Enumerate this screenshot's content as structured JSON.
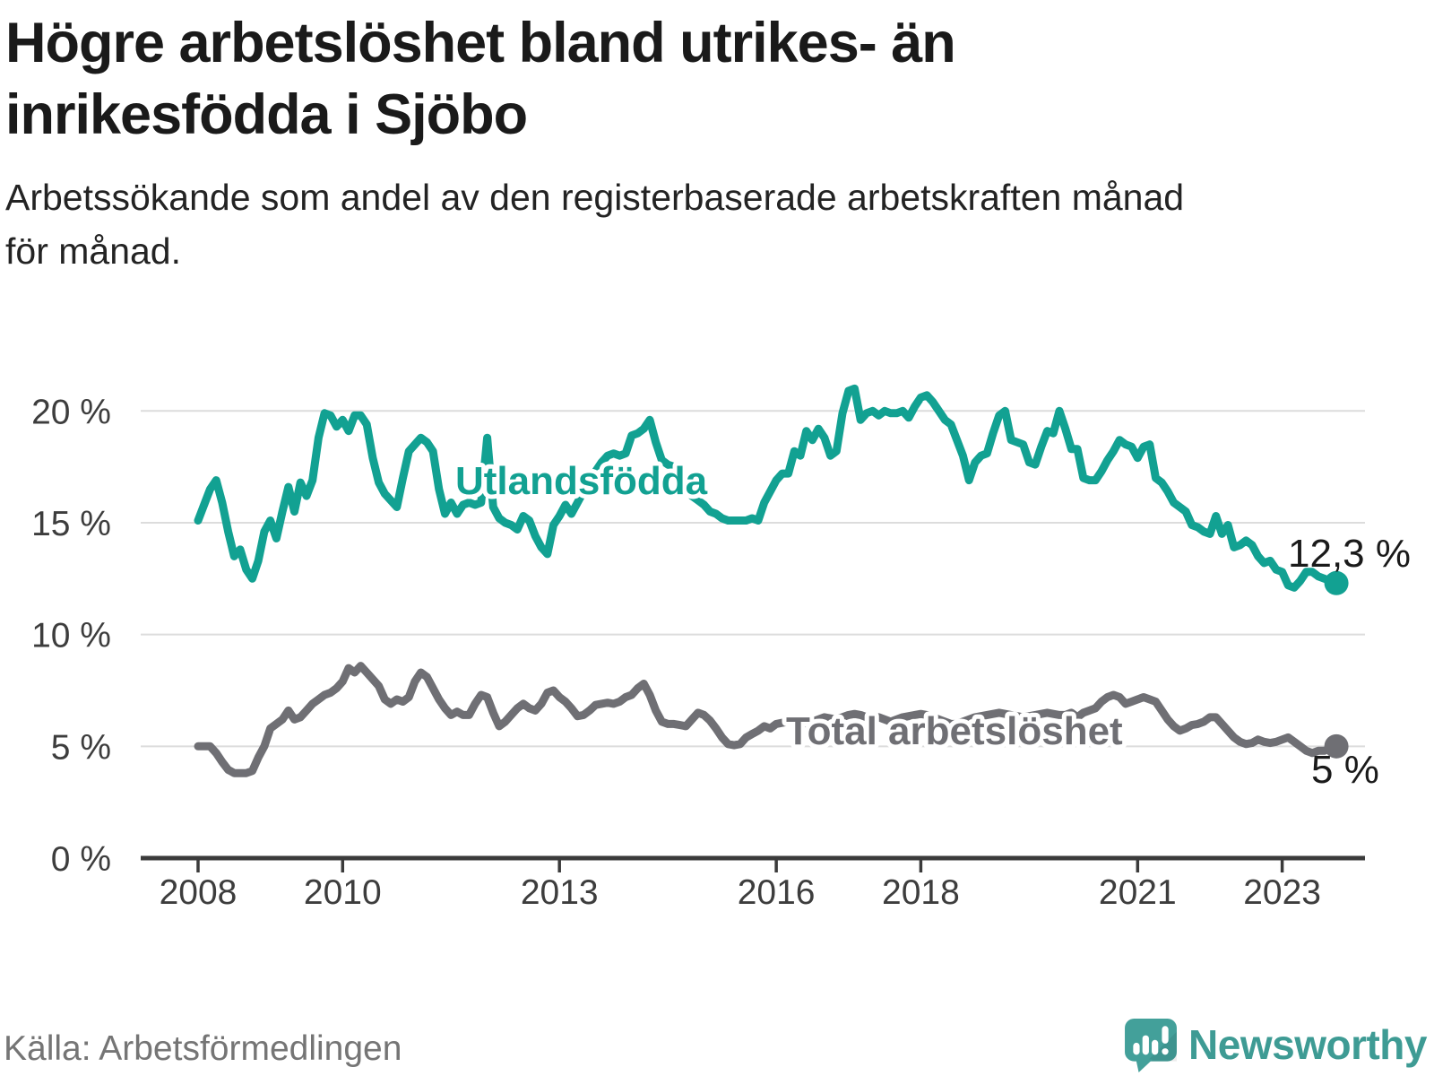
{
  "title": "Högre arbetslöshet bland utrikes- än inrikesfödda i Sjöbo",
  "title_lines": [
    "Högre arbetslöshet bland utrikes- än",
    "inrikesfödda i Sjöbo"
  ],
  "subtitle": "Arbetssökande som andel av den registerbaserade arbetskraften månad för månad.",
  "subtitle_lines": [
    "Arbetssökande som andel av den registerbaserade arbetskraften månad",
    "för månad."
  ],
  "source": "Källa: Arbetsförmedlingen",
  "logo": {
    "name": "Newsworthy",
    "color": "#3e9b94",
    "icon": "speech-bubble-bar-chart"
  },
  "colors": {
    "foreign_born_line": "#12a192",
    "total_line": "#6f6f74",
    "gridline": "#dcdcdc",
    "axis": "#3b3b3b",
    "end_label_text": "#1a1a1a"
  },
  "chart_data": {
    "type": "line",
    "title": "Högre arbetslöshet bland utrikes- än inrikesfödda i Sjöbo",
    "xlabel": "",
    "ylabel": "",
    "grid": true,
    "legend_position": "inline-labels",
    "x_unit": "monthly",
    "x_start_year": 2008,
    "x_end": "2023-10",
    "ylim": [
      0,
      21.5
    ],
    "x_axis_ticks": [
      "2008",
      "2010",
      "2013",
      "2016",
      "2018",
      "2021",
      "2023"
    ],
    "y_axis_ticks": [
      {
        "value": 0,
        "label": "0 %"
      },
      {
        "value": 5,
        "label": "5 %"
      },
      {
        "value": 10,
        "label": "10 %"
      },
      {
        "value": 15,
        "label": "15 %"
      },
      {
        "value": 20,
        "label": "20 %"
      }
    ],
    "series": [
      {
        "name": "Utlandsfödda",
        "color": "#12a192",
        "end_label": "12,3 %",
        "end_value": 12.3,
        "values": [
          15.1,
          15.8,
          16.5,
          16.9,
          15.9,
          14.6,
          13.5,
          13.8,
          12.9,
          12.5,
          13.3,
          14.6,
          15.1,
          14.3,
          15.5,
          16.6,
          15.5,
          16.8,
          16.2,
          16.9,
          18.8,
          19.9,
          19.8,
          19.3,
          19.6,
          19.1,
          19.8,
          19.8,
          19.4,
          17.9,
          16.8,
          16.3,
          16.0,
          15.7,
          17.0,
          18.2,
          18.5,
          18.8,
          18.6,
          18.2,
          16.5,
          15.4,
          15.9,
          15.4,
          15.8,
          15.9,
          15.8,
          15.9,
          18.8,
          15.7,
          15.2,
          15.0,
          14.9,
          14.7,
          15.3,
          15.1,
          14.4,
          13.9,
          13.6,
          14.9,
          15.3,
          15.8,
          15.4,
          15.9,
          16.4,
          16.9,
          17.3,
          17.7,
          18.0,
          18.1,
          18.0,
          18.1,
          18.9,
          19.0,
          19.2,
          19.6,
          18.6,
          17.8,
          17.6,
          17.5,
          17.3,
          16.9,
          16.2,
          16.0,
          15.8,
          15.5,
          15.4,
          15.2,
          15.1,
          15.1,
          15.1,
          15.1,
          15.2,
          15.1,
          15.9,
          16.4,
          16.9,
          17.2,
          17.2,
          18.2,
          18.0,
          19.1,
          18.7,
          19.2,
          18.8,
          18.0,
          18.2,
          19.9,
          20.9,
          21.0,
          19.6,
          19.9,
          20.0,
          19.8,
          20.0,
          19.9,
          19.9,
          20.0,
          19.7,
          20.2,
          20.6,
          20.7,
          20.4,
          20.0,
          19.6,
          19.4,
          18.7,
          18.0,
          16.9,
          17.7,
          18.0,
          18.1,
          19.0,
          19.8,
          20.0,
          18.7,
          18.6,
          18.5,
          17.7,
          17.6,
          18.4,
          19.1,
          19.0,
          20.0,
          19.2,
          18.3,
          18.3,
          17.0,
          16.9,
          16.9,
          17.3,
          17.8,
          18.2,
          18.7,
          18.5,
          18.4,
          17.9,
          18.4,
          18.5,
          17.0,
          16.8,
          16.4,
          15.9,
          15.7,
          15.5,
          14.9,
          14.8,
          14.6,
          14.5,
          15.3,
          14.5,
          14.9,
          13.9,
          14.0,
          14.2,
          14.0,
          13.5,
          13.2,
          13.3,
          12.9,
          12.8,
          12.2,
          12.1,
          12.4,
          12.8,
          12.8,
          12.6,
          12.5,
          12.4,
          12.3
        ]
      },
      {
        "name": "Total arbetslöshet",
        "color": "#6f6f74",
        "end_label": "5 %",
        "end_value": 5.0,
        "values": [
          5.0,
          5.0,
          5.0,
          4.7,
          4.3,
          3.95,
          3.8,
          3.8,
          3.8,
          3.9,
          4.5,
          5.0,
          5.8,
          6.0,
          6.2,
          6.6,
          6.2,
          6.3,
          6.6,
          6.9,
          7.1,
          7.3,
          7.4,
          7.6,
          7.9,
          8.5,
          8.3,
          8.6,
          8.3,
          8.0,
          7.7,
          7.1,
          6.9,
          7.1,
          7.0,
          7.2,
          7.9,
          8.3,
          8.1,
          7.6,
          7.1,
          6.7,
          6.4,
          6.55,
          6.4,
          6.4,
          6.9,
          7.3,
          7.2,
          6.5,
          5.9,
          6.1,
          6.4,
          6.7,
          6.9,
          6.7,
          6.6,
          6.9,
          7.4,
          7.5,
          7.2,
          7.0,
          6.7,
          6.35,
          6.4,
          6.6,
          6.85,
          6.9,
          6.95,
          6.9,
          7.0,
          7.2,
          7.3,
          7.6,
          7.8,
          7.3,
          6.6,
          6.1,
          6.0,
          6.0,
          5.95,
          5.9,
          6.2,
          6.5,
          6.4,
          6.15,
          5.8,
          5.4,
          5.1,
          5.05,
          5.1,
          5.4,
          5.55,
          5.7,
          5.9,
          5.8,
          6.0,
          6.05,
          6.1,
          6.15,
          6.1,
          6.0,
          6.1,
          6.2,
          6.3,
          6.25,
          6.2,
          6.3,
          6.4,
          6.45,
          6.4,
          6.3,
          6.25,
          6.3,
          6.2,
          6.1,
          6.2,
          6.3,
          6.35,
          6.4,
          6.45,
          6.4,
          6.3,
          6.2,
          6.1,
          6.0,
          6.0,
          6.1,
          6.2,
          6.3,
          6.35,
          6.4,
          6.45,
          6.5,
          6.45,
          6.4,
          6.35,
          6.3,
          6.35,
          6.4,
          6.45,
          6.5,
          6.45,
          6.4,
          6.4,
          6.5,
          6.3,
          6.5,
          6.6,
          6.7,
          7.0,
          7.2,
          7.3,
          7.2,
          6.9,
          7.0,
          7.1,
          7.2,
          7.1,
          7.0,
          6.6,
          6.2,
          5.9,
          5.7,
          5.8,
          5.95,
          6.0,
          6.1,
          6.3,
          6.3,
          6.0,
          5.7,
          5.4,
          5.2,
          5.1,
          5.15,
          5.3,
          5.2,
          5.15,
          5.2,
          5.3,
          5.4,
          5.2,
          5.0,
          4.8,
          4.7,
          4.8,
          4.8,
          4.9,
          5.0
        ]
      }
    ]
  }
}
